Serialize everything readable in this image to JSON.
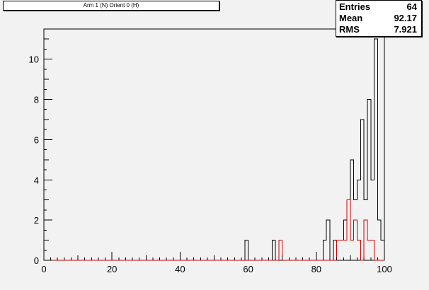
{
  "header": {
    "title": "Arm 1 (N) Orient 0 (H)"
  },
  "stats": [
    {
      "key": "Entries",
      "value": "64"
    },
    {
      "key": "Mean",
      "value": "92.17"
    },
    {
      "key": "RMS",
      "value": "7.921"
    }
  ],
  "chart_data": {
    "type": "histogram",
    "title": "Arm 1 (N) Orient 0 (H)",
    "xlabel": "",
    "ylabel": "",
    "xlim": [
      0,
      100
    ],
    "ylim": [
      0,
      11.5
    ],
    "bin_width": 1,
    "x_ticks": [
      0,
      20,
      40,
      60,
      80,
      100
    ],
    "y_ticks": [
      0,
      2,
      4,
      6,
      8,
      10
    ],
    "grid": false,
    "series": [
      {
        "color": "#000000",
        "bins": [
          {
            "x": 59,
            "y": 1
          },
          {
            "x": 67,
            "y": 1
          },
          {
            "x": 69,
            "y": 1
          },
          {
            "x": 82,
            "y": 1
          },
          {
            "x": 83,
            "y": 2
          },
          {
            "x": 85,
            "y": 1
          },
          {
            "x": 86,
            "y": 1
          },
          {
            "x": 87,
            "y": 1
          },
          {
            "x": 88,
            "y": 2
          },
          {
            "x": 89,
            "y": 3
          },
          {
            "x": 90,
            "y": 5
          },
          {
            "x": 91,
            "y": 3
          },
          {
            "x": 92,
            "y": 4
          },
          {
            "x": 93,
            "y": 7
          },
          {
            "x": 94,
            "y": 3
          },
          {
            "x": 95,
            "y": 8
          },
          {
            "x": 96,
            "y": 4
          },
          {
            "x": 97,
            "y": 11
          },
          {
            "x": 98,
            "y": 2
          },
          {
            "x": 99,
            "y": 1
          }
        ]
      },
      {
        "color": "#cc0000",
        "bins": [
          {
            "x": 69,
            "y": 1
          },
          {
            "x": 86,
            "y": 1
          },
          {
            "x": 87,
            "y": 1
          },
          {
            "x": 88,
            "y": 1
          },
          {
            "x": 89,
            "y": 3
          },
          {
            "x": 90,
            "y": 1
          },
          {
            "x": 91,
            "y": 2
          },
          {
            "x": 92,
            "y": 1
          },
          {
            "x": 94,
            "y": 2
          },
          {
            "x": 95,
            "y": 1
          },
          {
            "x": 96,
            "y": 1
          }
        ]
      }
    ]
  }
}
